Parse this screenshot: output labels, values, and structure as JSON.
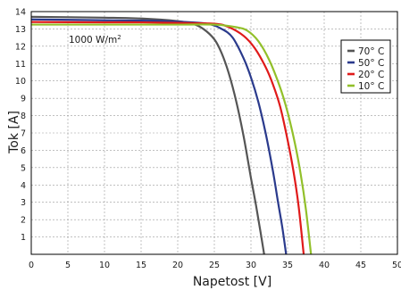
{
  "chart_data": {
    "type": "line",
    "title": "",
    "xlabel": "Napetost [V]",
    "ylabel": "Tok [A]",
    "xlim": [
      0,
      50
    ],
    "ylim": [
      0,
      14
    ],
    "xticks": [
      0,
      5,
      10,
      15,
      20,
      25,
      30,
      35,
      40,
      45,
      50
    ],
    "yticks": [
      1,
      2,
      3,
      4,
      5,
      6,
      7,
      8,
      9,
      10,
      11,
      12,
      13,
      14
    ],
    "grid": true,
    "legend_position": "right",
    "annotation": {
      "text": "1000 W/m",
      "superscript": "2"
    },
    "series": [
      {
        "name": "70° C",
        "color": "#555555",
        "x": [
          0,
          10,
          15,
          20,
          22,
          23.5,
          25,
          26,
          27,
          28,
          29,
          30,
          30.7,
          31.3,
          31.8
        ],
        "y": [
          13.7,
          13.65,
          13.6,
          13.45,
          13.3,
          13.0,
          12.4,
          11.6,
          10.4,
          8.8,
          6.8,
          4.4,
          2.8,
          1.3,
          0
        ]
      },
      {
        "name": "50° C",
        "color": "#2a3a8c",
        "x": [
          0,
          10,
          15,
          20,
          24,
          26,
          27.5,
          29,
          30,
          31,
          32,
          33,
          33.7,
          34.3,
          34.8
        ],
        "y": [
          13.55,
          13.5,
          13.48,
          13.42,
          13.3,
          13.0,
          12.5,
          11.3,
          10.2,
          8.8,
          7.0,
          4.8,
          3.0,
          1.5,
          0
        ]
      },
      {
        "name": "20° C",
        "color": "#e01a1a",
        "x": [
          0,
          10,
          15,
          20,
          25,
          27,
          29,
          30.5,
          32,
          33,
          34,
          35,
          35.8,
          36.5,
          37.2
        ],
        "y": [
          13.4,
          13.38,
          13.38,
          13.35,
          13.3,
          13.1,
          12.6,
          11.9,
          10.8,
          9.8,
          8.5,
          6.6,
          4.8,
          2.8,
          0
        ]
      },
      {
        "name": "10° C",
        "color": "#92c02a",
        "x": [
          0,
          10,
          15,
          20,
          25,
          28,
          29.5,
          31,
          32.5,
          34,
          35,
          36,
          36.8,
          37.5,
          38.2
        ],
        "y": [
          13.25,
          13.25,
          13.25,
          13.25,
          13.25,
          13.1,
          12.9,
          12.3,
          11.2,
          9.6,
          8.2,
          6.4,
          4.6,
          2.6,
          0
        ]
      }
    ]
  }
}
